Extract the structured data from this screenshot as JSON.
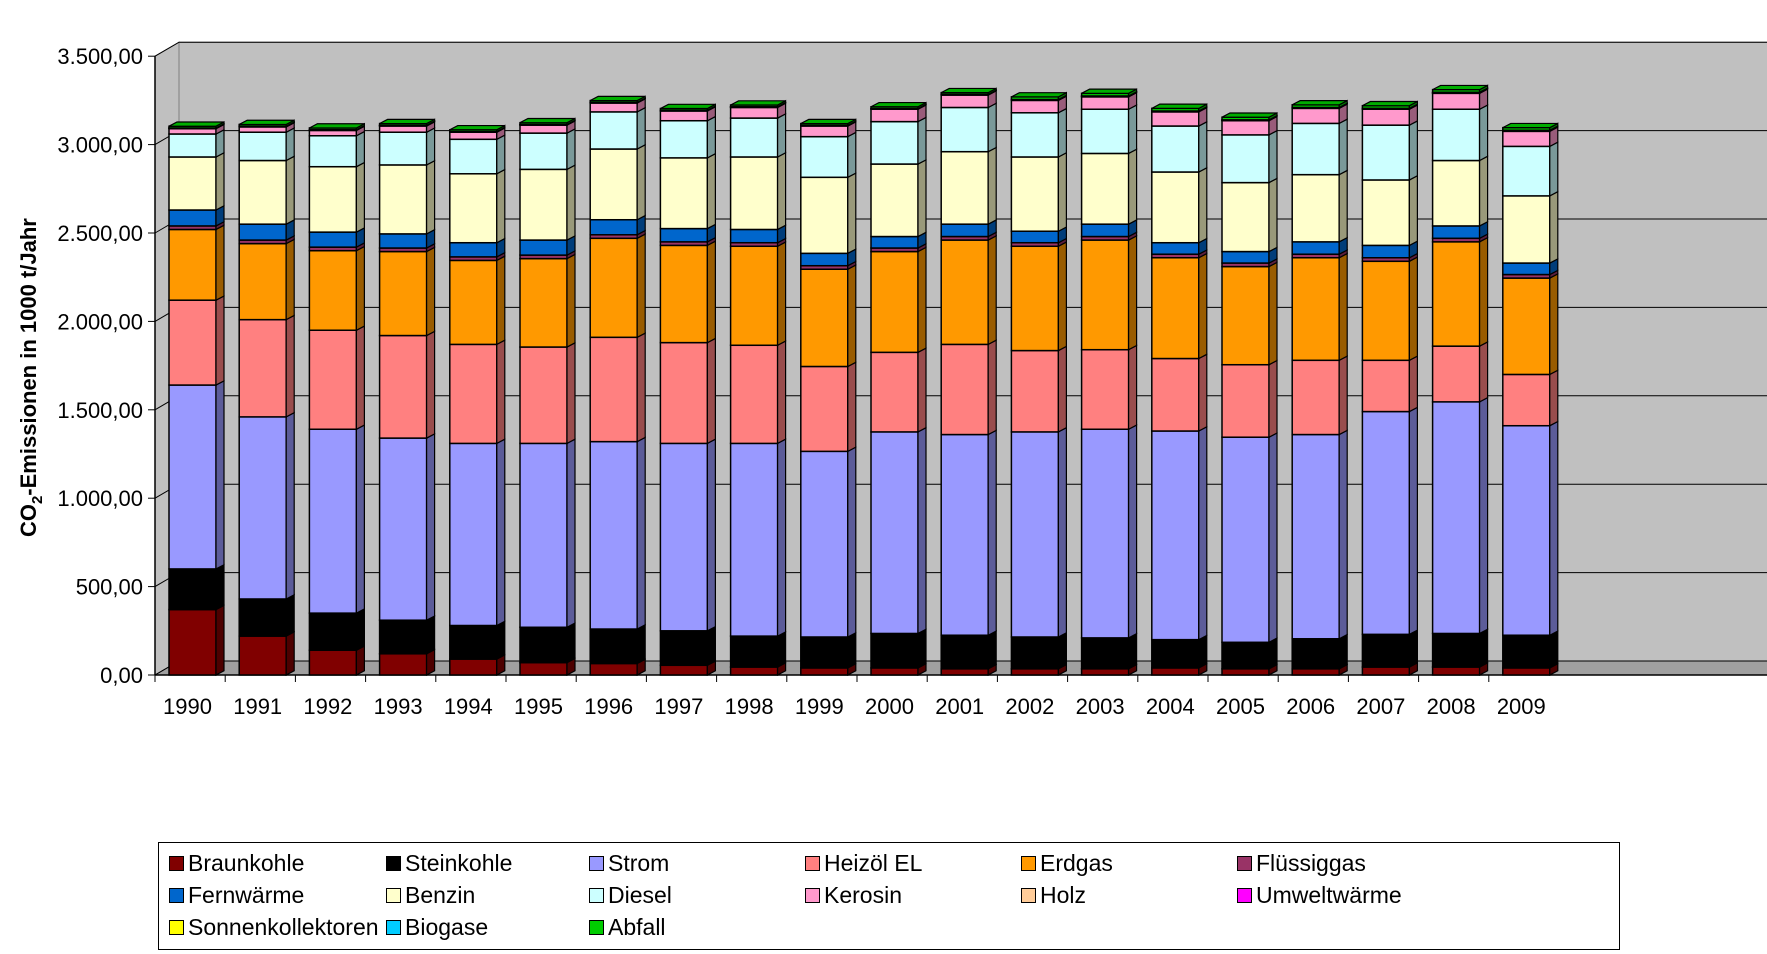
{
  "chart_data": {
    "type": "bar",
    "stacked": true,
    "three_d": true,
    "ylabel_main": "CO",
    "ylabel_sub": "2",
    "ylabel_rest": "-Emissionen in 1000 t/Jahr",
    "ylim": [
      0,
      3500
    ],
    "grid": true,
    "legend_position": "bottom",
    "y_ticks": [
      {
        "value": 0,
        "label": "0,00"
      },
      {
        "value": 500,
        "label": "500,00"
      },
      {
        "value": 1000,
        "label": "1.000,00"
      },
      {
        "value": 1500,
        "label": "1.500,00"
      },
      {
        "value": 2000,
        "label": "2.000,00"
      },
      {
        "value": 2500,
        "label": "2.500,00"
      },
      {
        "value": 3000,
        "label": "3.000,00"
      },
      {
        "value": 3500,
        "label": "3.500,00"
      }
    ],
    "categories": [
      "1990",
      "1991",
      "1992",
      "1993",
      "1994",
      "1995",
      "1996",
      "1997",
      "1998",
      "1999",
      "2000",
      "2001",
      "2002",
      "2003",
      "2004",
      "2005",
      "2006",
      "2007",
      "2008",
      "2009"
    ],
    "series": [
      {
        "name": "Braunkohle",
        "color": "#800000",
        "values": [
          370,
          220,
          140,
          120,
          90,
          70,
          65,
          55,
          45,
          40,
          40,
          35,
          35,
          35,
          40,
          35,
          35,
          45,
          45,
          40
        ]
      },
      {
        "name": "Steinkohle",
        "color": "#000000",
        "values": [
          230,
          210,
          210,
          190,
          190,
          200,
          195,
          195,
          175,
          175,
          195,
          190,
          180,
          175,
          160,
          150,
          170,
          185,
          190,
          185
        ]
      },
      {
        "name": "Strom",
        "color": "#9999FF",
        "values": [
          1040,
          1030,
          1040,
          1030,
          1030,
          1040,
          1060,
          1060,
          1090,
          1050,
          1140,
          1135,
          1160,
          1180,
          1180,
          1160,
          1155,
          1260,
          1310,
          1185
        ]
      },
      {
        "name": "Heizöl EL",
        "color": "#FF8080",
        "values": [
          480,
          550,
          560,
          580,
          560,
          545,
          590,
          570,
          555,
          480,
          450,
          510,
          460,
          450,
          410,
          410,
          420,
          290,
          315,
          290
        ]
      },
      {
        "name": "Erdgas",
        "color": "#FF9900",
        "values": [
          400,
          430,
          450,
          475,
          475,
          500,
          560,
          550,
          560,
          550,
          570,
          590,
          590,
          620,
          570,
          555,
          580,
          560,
          590,
          545
        ]
      },
      {
        "name": "Flüssiggas",
        "color": "#993366",
        "values": [
          20,
          20,
          20,
          20,
          20,
          20,
          20,
          20,
          20,
          20,
          20,
          20,
          20,
          20,
          20,
          20,
          20,
          20,
          20,
          20
        ]
      },
      {
        "name": "Fernwärme",
        "color": "#0066CC",
        "values": [
          90,
          90,
          85,
          80,
          80,
          85,
          85,
          75,
          75,
          70,
          65,
          70,
          65,
          70,
          65,
          65,
          70,
          70,
          70,
          65
        ]
      },
      {
        "name": "Benzin",
        "color": "#FFFFCC",
        "values": [
          300,
          360,
          370,
          390,
          390,
          400,
          400,
          400,
          410,
          430,
          410,
          410,
          420,
          400,
          400,
          390,
          380,
          370,
          370,
          380
        ]
      },
      {
        "name": "Diesel",
        "color": "#CCFFFF",
        "values": [
          130,
          160,
          175,
          185,
          195,
          205,
          210,
          210,
          220,
          230,
          240,
          250,
          250,
          250,
          260,
          270,
          290,
          310,
          290,
          280
        ]
      },
      {
        "name": "Kerosin",
        "color": "#FF99CC",
        "values": [
          30,
          30,
          30,
          35,
          40,
          45,
          50,
          55,
          60,
          60,
          70,
          70,
          70,
          70,
          80,
          80,
          85,
          90,
          90,
          85
        ]
      },
      {
        "name": "Holz",
        "color": "#FFCC99",
        "values": [
          3,
          3,
          3,
          3,
          3,
          3,
          3,
          3,
          3,
          3,
          3,
          3,
          3,
          3,
          3,
          3,
          3,
          3,
          3,
          3
        ]
      },
      {
        "name": "Umweltwärme",
        "color": "#FF00FF",
        "values": [
          1,
          1,
          1,
          1,
          1,
          1,
          1,
          1,
          1,
          1,
          1,
          1,
          2,
          2,
          2,
          2,
          2,
          2,
          3,
          3
        ]
      },
      {
        "name": "Sonnenkollektoren",
        "color": "#FFFF00",
        "values": [
          0,
          0,
          0,
          0,
          0,
          0,
          0,
          0,
          0,
          0,
          0,
          0,
          0,
          0,
          0,
          0,
          0,
          0,
          0,
          0
        ]
      },
      {
        "name": "Biogase",
        "color": "#00CCFF",
        "values": [
          0,
          0,
          0,
          0,
          0,
          0,
          0,
          0,
          0,
          0,
          0,
          0,
          0,
          0,
          0,
          0,
          0,
          0,
          0,
          0
        ]
      },
      {
        "name": "Abfall",
        "color": "#00CC00",
        "values": [
          10,
          10,
          10,
          10,
          10,
          10,
          10,
          10,
          10,
          10,
          10,
          10,
          15,
          15,
          15,
          15,
          15,
          15,
          15,
          15
        ]
      }
    ]
  }
}
